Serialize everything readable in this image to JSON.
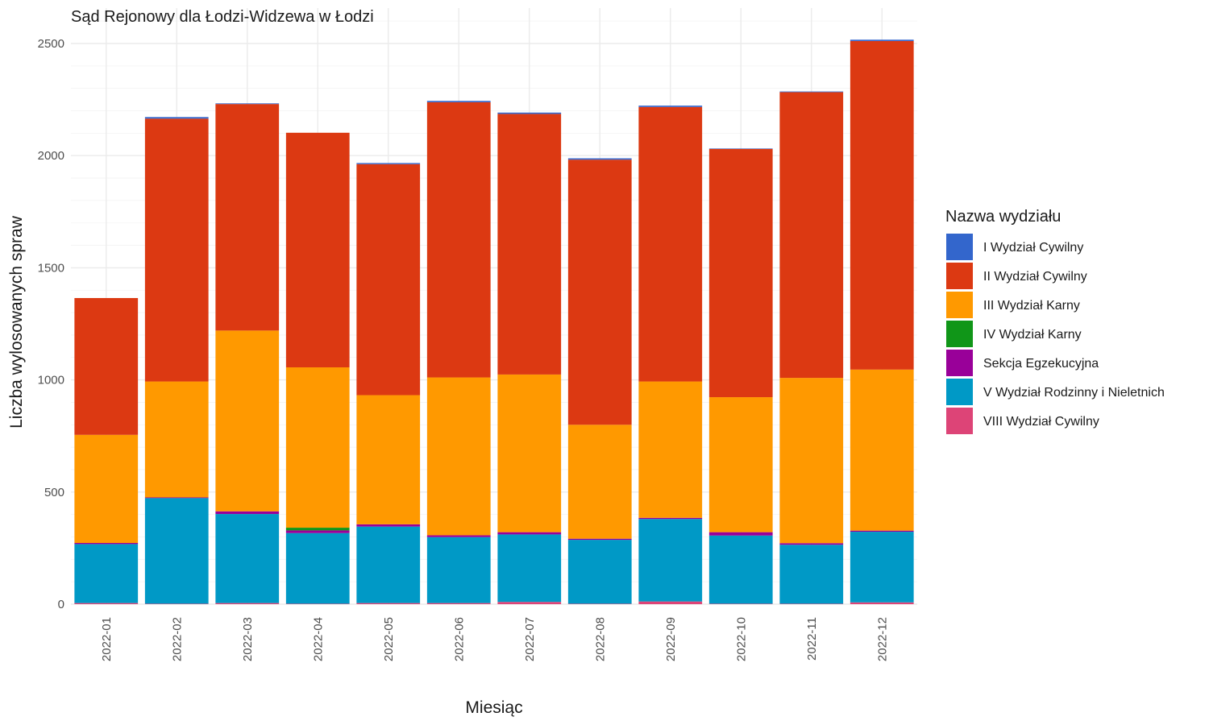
{
  "chart_data": {
    "type": "bar",
    "stacked": true,
    "title": "Sąd Rejonowy dla Łodzi-Widzewa w Łodzi",
    "xlabel": "Miesiąc",
    "ylabel": "Liczba wylosowanych spraw",
    "ylim": [
      0,
      2560
    ],
    "yticks": [
      0,
      500,
      1000,
      1500,
      2000,
      2500
    ],
    "grid": true,
    "legend_title": "Nazwa wydziału",
    "legend_position": "right",
    "categories": [
      "2022-01",
      "2022-02",
      "2022-03",
      "2022-04",
      "2022-05",
      "2022-06",
      "2022-07",
      "2022-08",
      "2022-09",
      "2022-10",
      "2022-11",
      "2022-12"
    ],
    "series": [
      {
        "name": "VIII Wydział Cywilny",
        "color": "#DD4477",
        "values": [
          5,
          2,
          5,
          2,
          5,
          5,
          10,
          2,
          12,
          2,
          2,
          8
        ]
      },
      {
        "name": "V Wydział Rodzinny i Nieletnich",
        "color": "#0099C6",
        "values": [
          263,
          471,
          397,
          315,
          341,
          294,
          301,
          285,
          368,
          304,
          263,
          315
        ]
      },
      {
        "name": "Sekcja Egzekucyjna",
        "color": "#990099",
        "values": [
          5,
          3,
          12,
          12,
          10,
          8,
          10,
          5,
          5,
          15,
          7,
          5
        ]
      },
      {
        "name": "IV Wydział Karny",
        "color": "#109618",
        "values": [
          0,
          0,
          0,
          12,
          0,
          0,
          0,
          0,
          0,
          0,
          0,
          0
        ]
      },
      {
        "name": "III Wydział Karny",
        "color": "#FF9900",
        "values": [
          482,
          517,
          806,
          715,
          576,
          704,
          703,
          508,
          608,
          602,
          737,
          718
        ]
      },
      {
        "name": "II Wydział Cywilny",
        "color": "#DC3912",
        "values": [
          610,
          1172,
          1010,
          1046,
          1030,
          1227,
          1162,
          1182,
          1224,
          1107,
          1274,
          1465
        ]
      },
      {
        "name": "I Wydział Cywilny",
        "color": "#3366CC",
        "values": [
          0,
          7,
          3,
          0,
          5,
          6,
          6,
          6,
          6,
          2,
          3,
          6
        ]
      }
    ]
  }
}
